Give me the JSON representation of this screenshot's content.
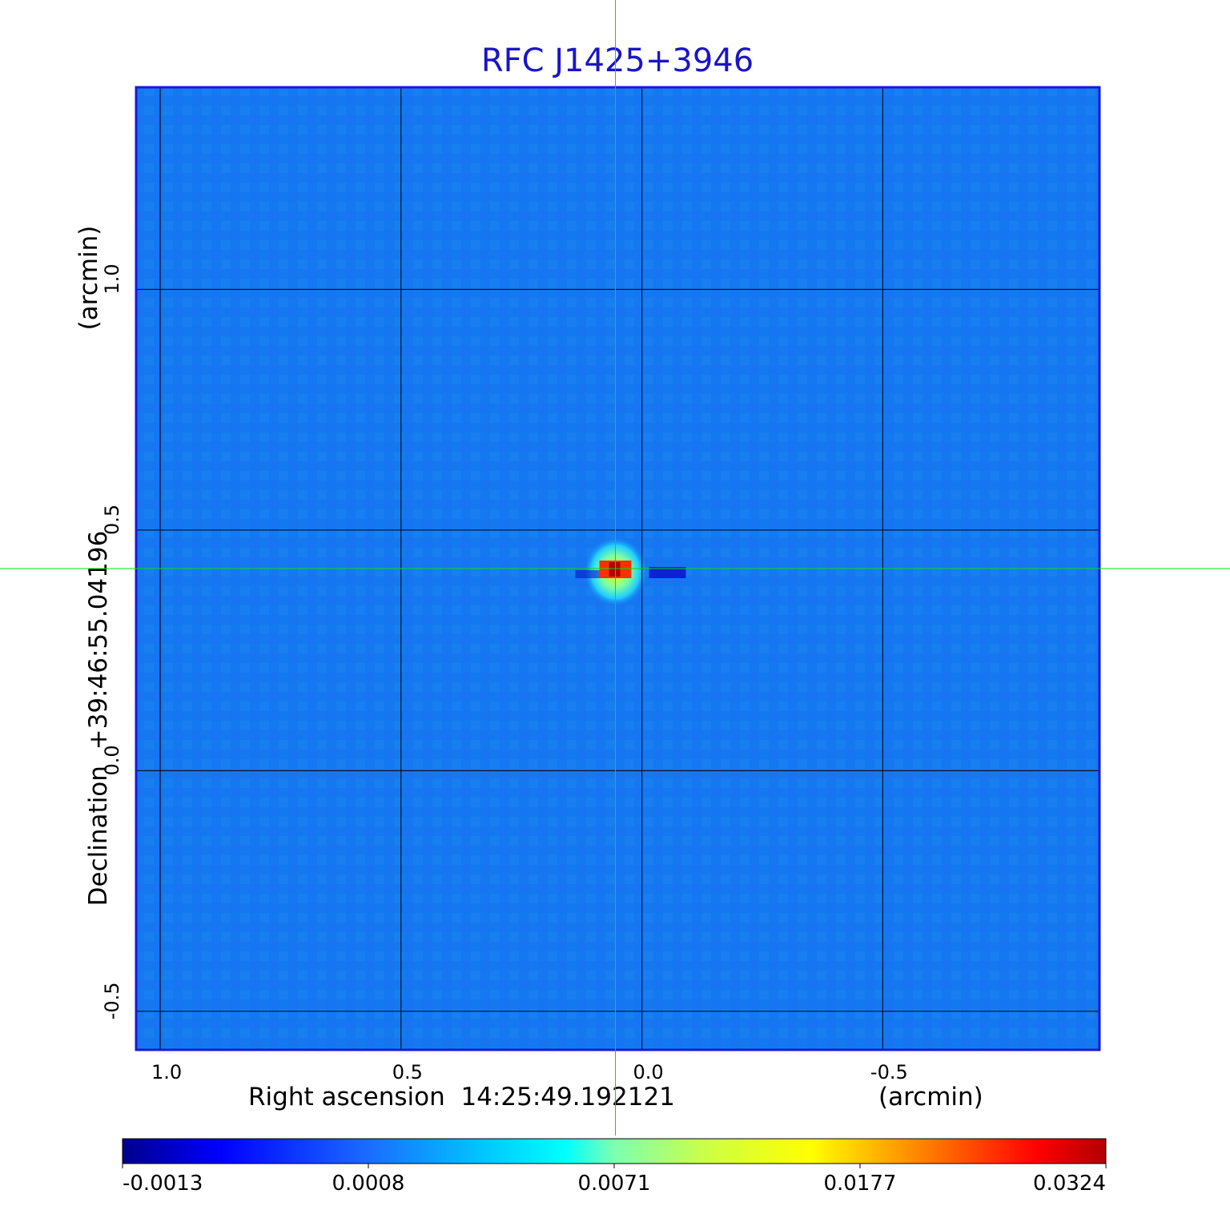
{
  "chart_data": {
    "type": "heatmap",
    "title": "RFC J1425+3946",
    "xlabel": "Right ascension  14:25:49.192121",
    "xunit": "(arcmin)",
    "ylabel": "Declination  +39:46:55.04196",
    "yunit": "(arcmin)",
    "xlim": [
      1.05,
      -0.95
    ],
    "ylim": [
      -0.58,
      1.42
    ],
    "x_ticks": [
      {
        "value": 1.0,
        "label": "1.0"
      },
      {
        "value": 0.5,
        "label": "0.5"
      },
      {
        "value": 0.0,
        "label": "0.0"
      },
      {
        "value": -0.5,
        "label": "-0.5"
      }
    ],
    "y_ticks": [
      {
        "value": 1.0,
        "label": "1.0"
      },
      {
        "value": 0.5,
        "label": "0.5"
      },
      {
        "value": 0.0,
        "label": "0.0"
      },
      {
        "value": -0.5,
        "label": "-0.5"
      }
    ],
    "grid": true,
    "crosshair": {
      "x": 0.055,
      "y": 0.42
    },
    "source_peak": {
      "x": 0.055,
      "y": 0.42,
      "value": 0.0324
    },
    "colorbar": {
      "min": -0.0013,
      "max": 0.0324,
      "tick_labels": [
        "-0.0013",
        "0.0008",
        "0.0071",
        "0.0177",
        "0.0324"
      ],
      "colormap": "jet"
    },
    "colors": {
      "background_blue": "#1478f0",
      "frame": "#1a1ad2",
      "crosshair": "#00e000",
      "title": "#1a14c8"
    }
  }
}
